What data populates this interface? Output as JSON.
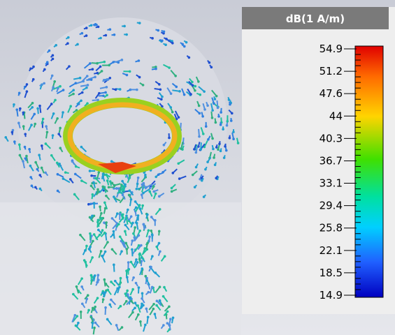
{
  "legend": {
    "title": "dB(1 A/m)",
    "ticks": [
      "54.9",
      "51.2",
      "47.6",
      "44",
      "40.3",
      "36.7",
      "33.1",
      "29.4",
      "25.8",
      "22.1",
      "18.5",
      "14.9"
    ]
  }
}
